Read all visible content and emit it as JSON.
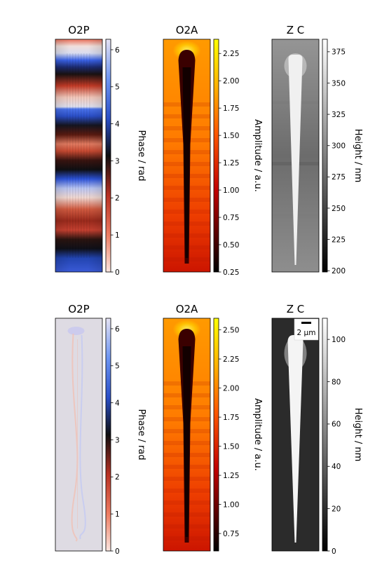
{
  "chart_data": [
    {
      "type": "heatmap",
      "title": "O2P",
      "colormap": "phase-cyclic",
      "pattern": "phase-bands",
      "colorbar": {
        "label": "Phase / rad",
        "vmin": 0,
        "vmax": 6.283,
        "ticks": [
          "0",
          "1",
          "2",
          "3",
          "4",
          "5",
          "6"
        ]
      }
    },
    {
      "type": "heatmap",
      "title": "O2A",
      "colormap": "hot",
      "pattern": "amplitude-tip",
      "colorbar": {
        "label": "Amplitude / a.u.",
        "vmin": 0.25,
        "vmax": 2.38,
        "ticks": [
          "0.25",
          "0.50",
          "0.75",
          "1.00",
          "1.25",
          "1.50",
          "1.75",
          "2.00",
          "2.25"
        ]
      }
    },
    {
      "type": "heatmap",
      "title": "Z C",
      "colormap": "gray",
      "pattern": "height-tip",
      "colorbar": {
        "label": "Height / nm",
        "vmin": 199,
        "vmax": 385,
        "ticks": [
          "200",
          "225",
          "250",
          "275",
          "300",
          "325",
          "350",
          "375"
        ]
      }
    },
    {
      "type": "heatmap",
      "title": "O2P",
      "colormap": "phase-cyclic",
      "pattern": "phase-flat",
      "colorbar": {
        "label": "Phase / rad",
        "vmin": 0,
        "vmax": 6.283,
        "ticks": [
          "0",
          "1",
          "2",
          "3",
          "4",
          "5",
          "6"
        ]
      }
    },
    {
      "type": "heatmap",
      "title": "O2A",
      "colormap": "hot",
      "pattern": "amplitude-tip",
      "colorbar": {
        "label": "Amplitude / a.u.",
        "vmin": 0.6,
        "vmax": 2.6,
        "ticks": [
          "0.75",
          "1.00",
          "1.25",
          "1.50",
          "1.75",
          "2.00",
          "2.25",
          "2.50"
        ]
      }
    },
    {
      "type": "heatmap",
      "title": "Z C",
      "colormap": "gray",
      "pattern": "height-tip-dark",
      "colorbar": {
        "label": "Height / nm",
        "vmin": 0,
        "vmax": 110,
        "ticks": [
          "0",
          "20",
          "40",
          "60",
          "80",
          "100"
        ]
      },
      "scalebar": "2 µm"
    }
  ]
}
